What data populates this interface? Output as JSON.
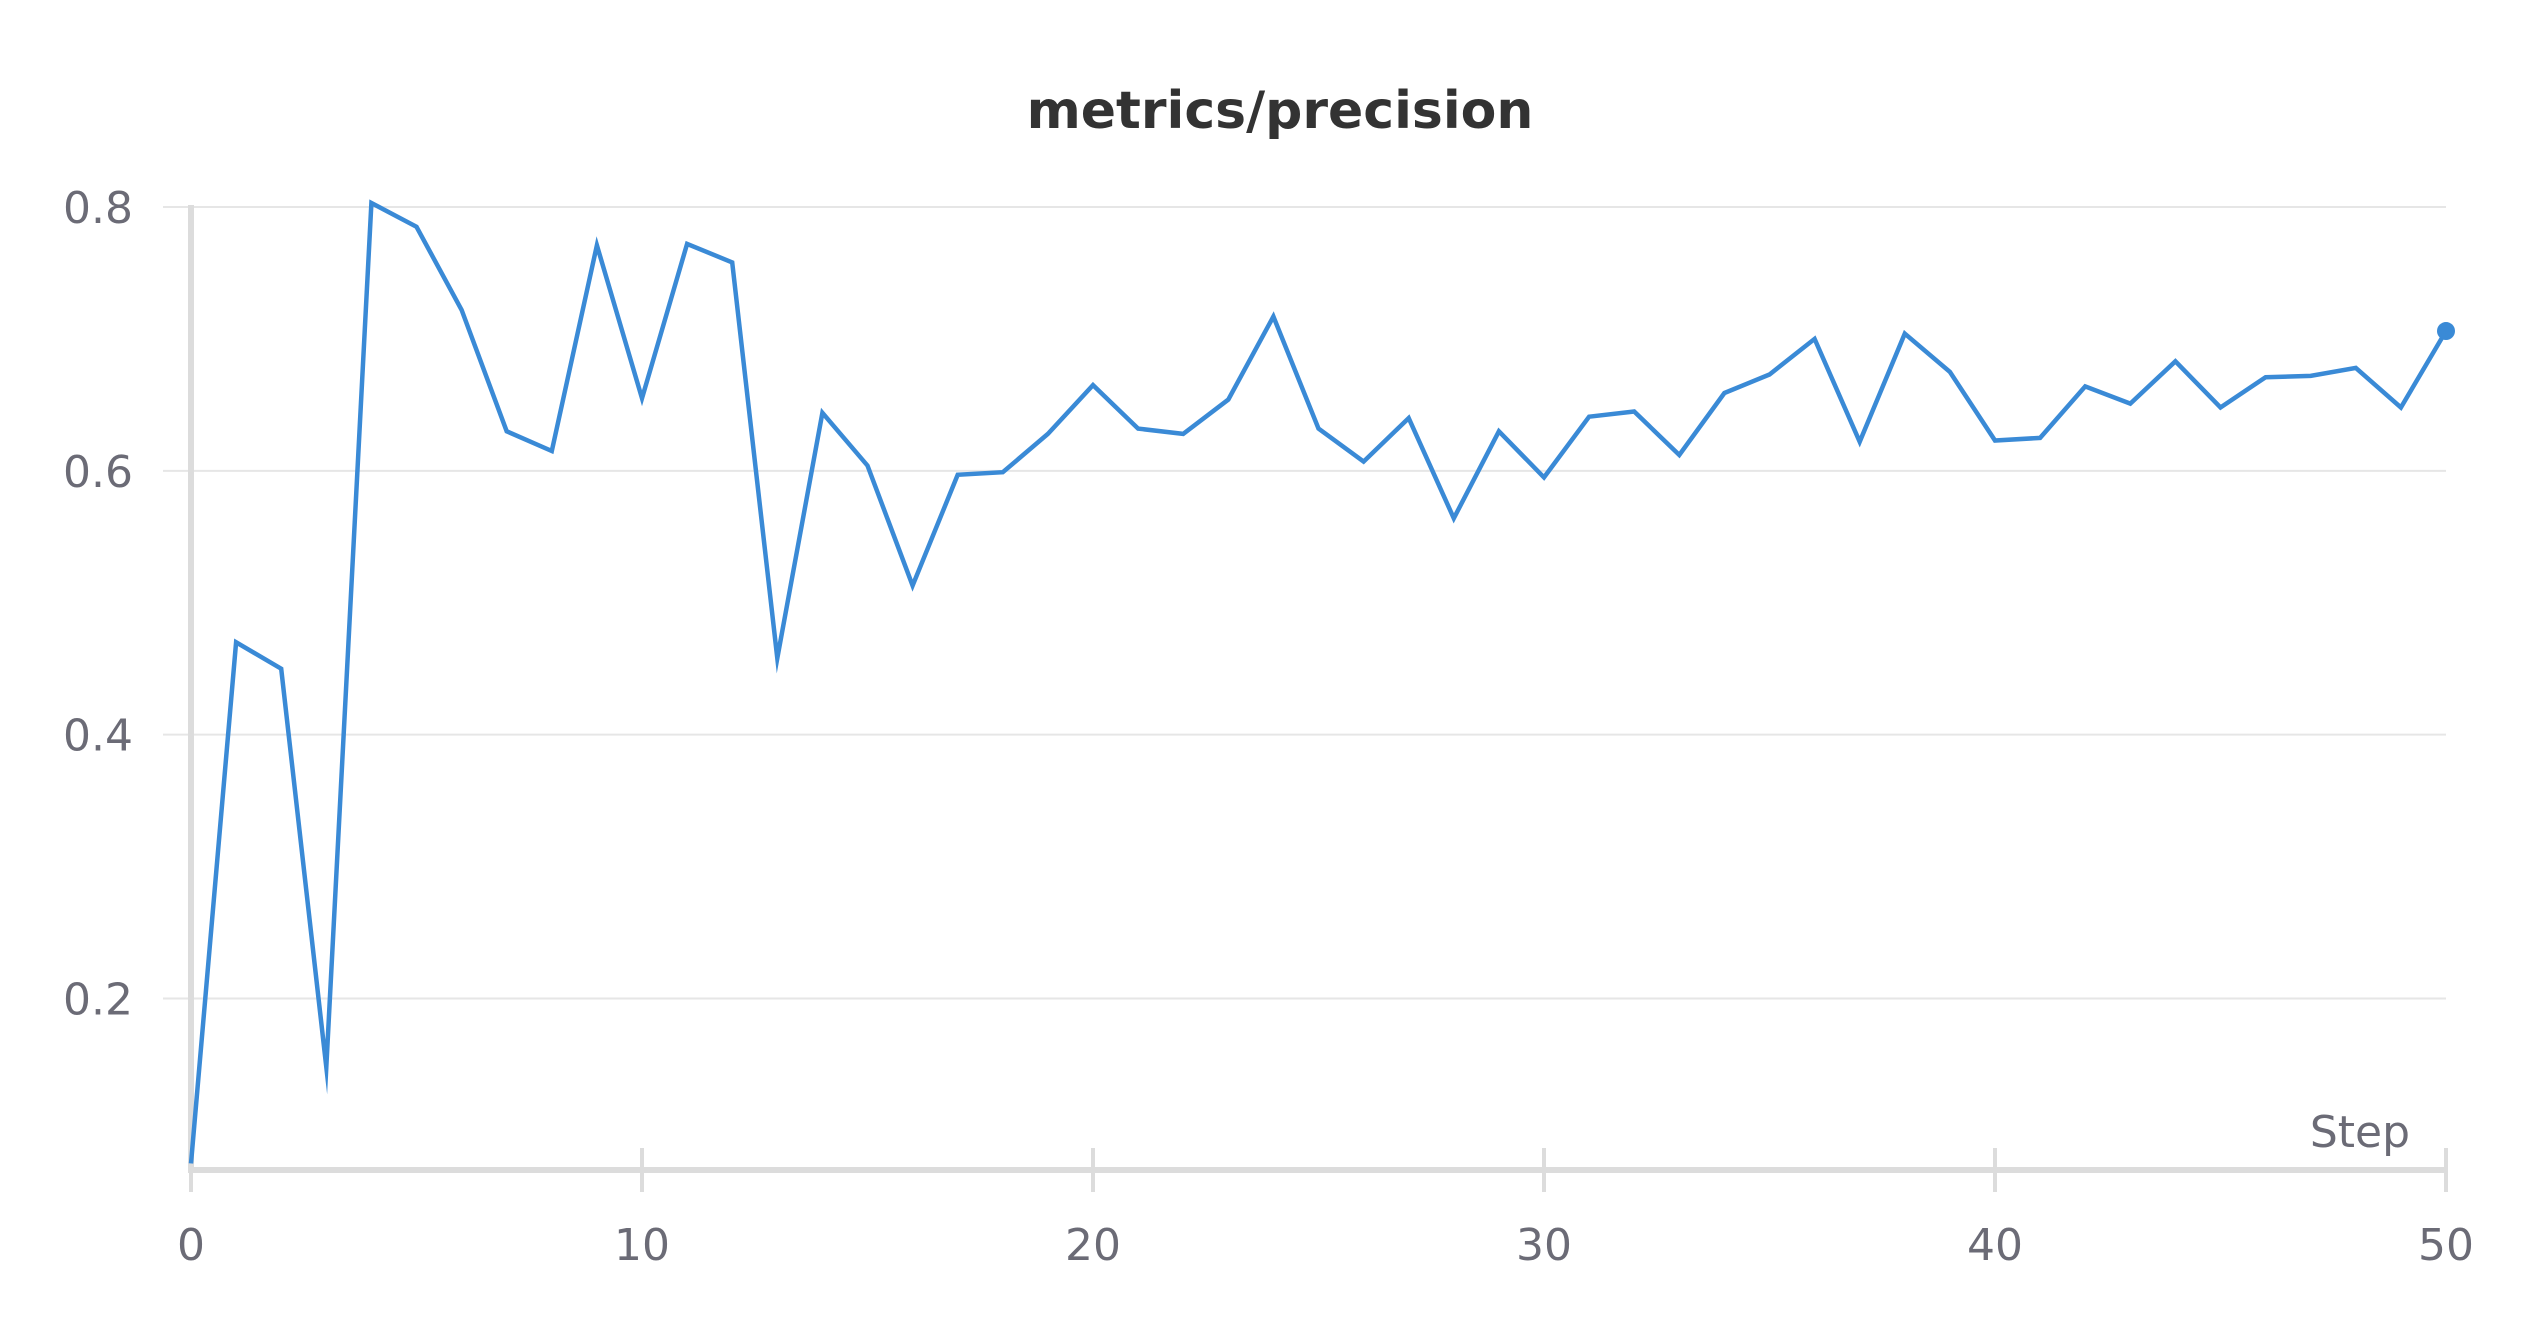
{
  "chart_data": {
    "type": "line",
    "title": "metrics/precision",
    "xlabel": "Step",
    "ylabel": "",
    "xlim": [
      0,
      50
    ],
    "ylim": [
      0.07,
      0.8
    ],
    "x_ticks": [
      0,
      10,
      20,
      30,
      40,
      50
    ],
    "y_ticks": [
      0.2,
      0.4,
      0.6,
      0.8
    ],
    "x_tick_labels": [
      "0",
      "10",
      "20",
      "30",
      "40",
      "50"
    ],
    "y_tick_labels": [
      "0.2",
      "0.4",
      "0.6",
      "0.8"
    ],
    "grid": true,
    "legend": "none",
    "colors": {
      "line": "#3a8ad6",
      "grid": "#e6e6e6",
      "axis": "#dcdcdc",
      "title": "#333333",
      "tick_text": "#6b6b76"
    },
    "series": [
      {
        "x": [
          0,
          1,
          2,
          3,
          4,
          5,
          6,
          7,
          8,
          9,
          10,
          11,
          12,
          13,
          14,
          15,
          16,
          17,
          18,
          19,
          20,
          21,
          22,
          23,
          24,
          25,
          26,
          27,
          28,
          29,
          30,
          31,
          32,
          33,
          34,
          35,
          36,
          37,
          38,
          39,
          40,
          41,
          42,
          43,
          44,
          45,
          46,
          47,
          48,
          49,
          50
        ],
        "values": [
          0.075,
          0.47,
          0.45,
          0.148,
          0.803,
          0.785,
          0.722,
          0.63,
          0.615,
          0.771,
          0.655,
          0.772,
          0.758,
          0.458,
          0.644,
          0.604,
          0.513,
          0.597,
          0.599,
          0.628,
          0.665,
          0.632,
          0.628,
          0.654,
          0.717,
          0.632,
          0.607,
          0.64,
          0.564,
          0.63,
          0.595,
          0.641,
          0.645,
          0.612,
          0.659,
          0.673,
          0.7,
          0.622,
          0.704,
          0.675,
          0.623,
          0.625,
          0.664,
          0.651,
          0.683,
          0.648,
          0.671,
          0.672,
          0.678,
          0.648,
          0.706
        ],
        "end_marker": true
      }
    ]
  }
}
